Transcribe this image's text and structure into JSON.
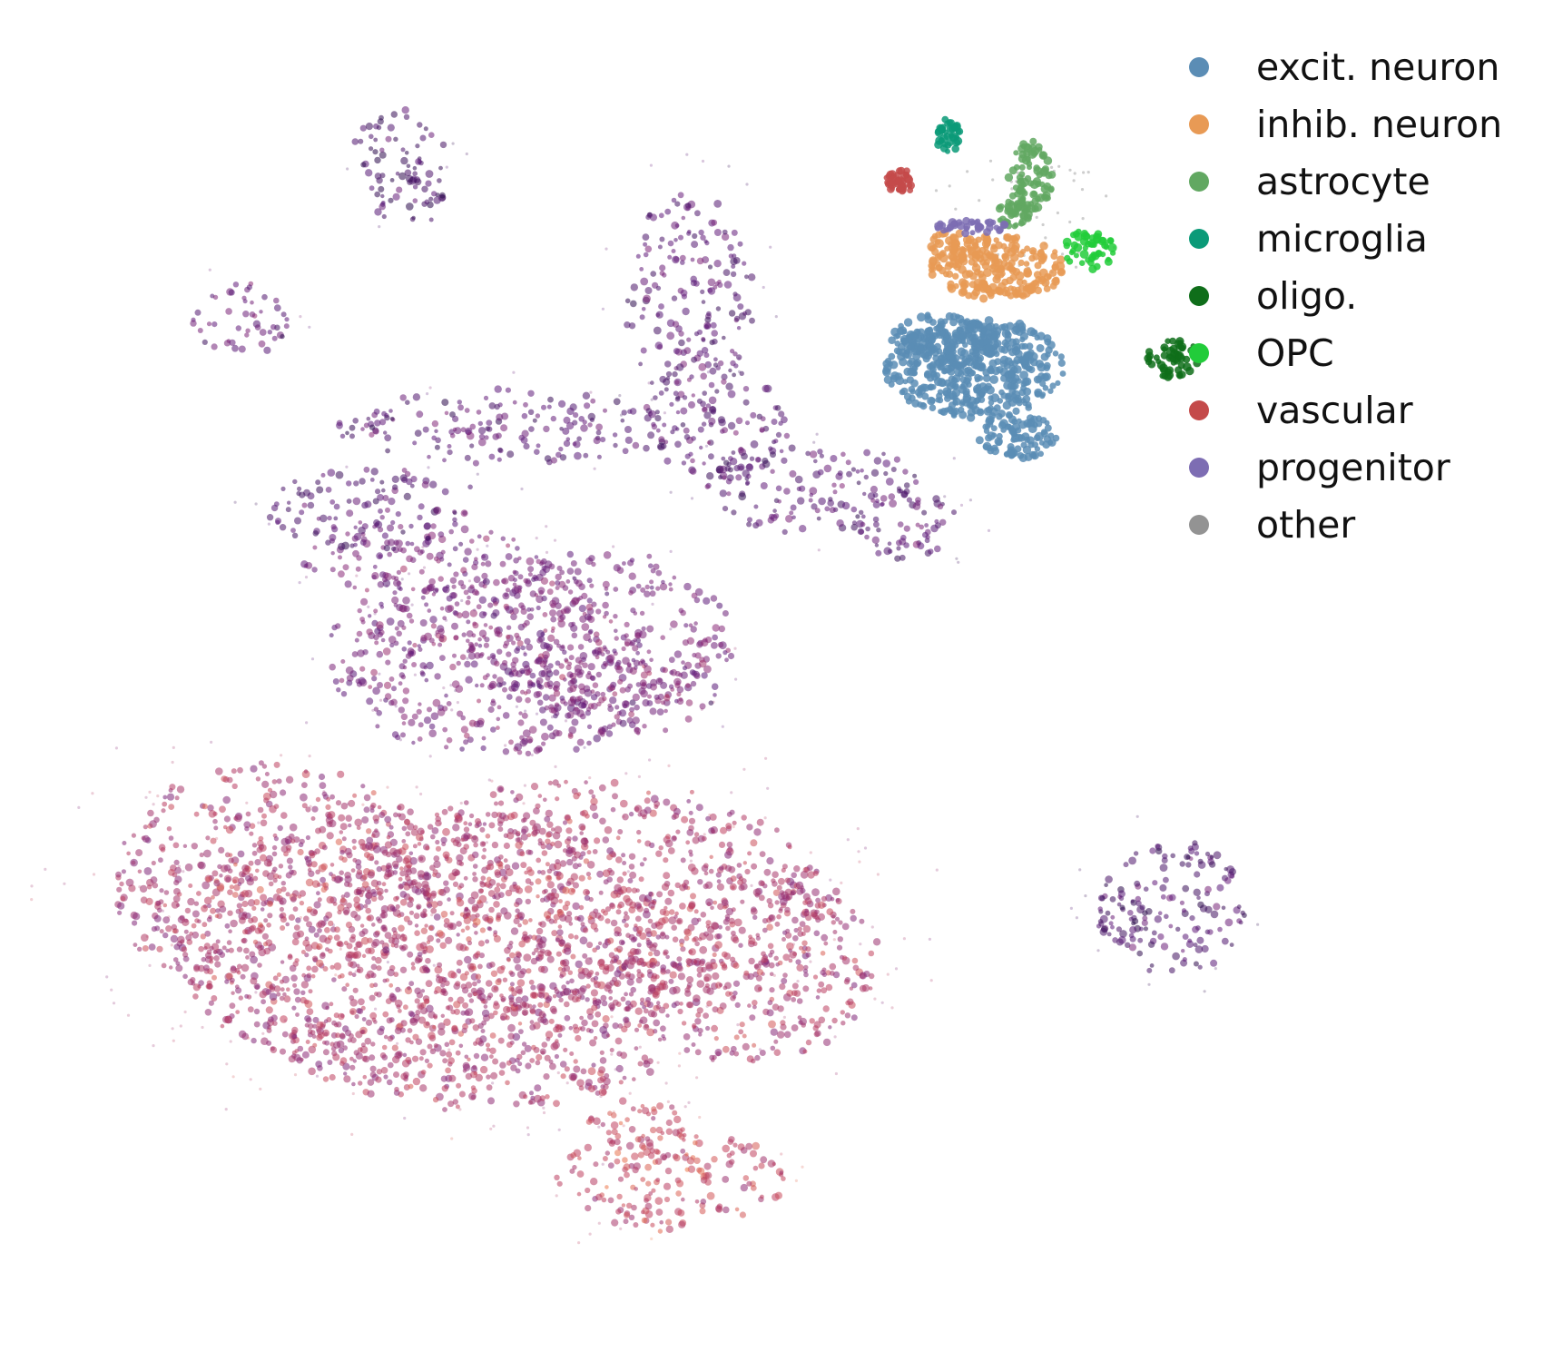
{
  "chart_data": {
    "type": "scatter",
    "title": "",
    "xlabel": "",
    "ylabel": "",
    "axes_visible": false,
    "grid": false,
    "legend_placement": "top-right",
    "main_embedding": {
      "coloring": "continuous gradient from dark purple to orange",
      "colormap": [
        "#2a0a4a",
        "#5c1a7a",
        "#8a2a78",
        "#c0405e",
        "#ee7a4c"
      ],
      "clusters": [
        {
          "id": "lower-large",
          "tone": 0.62
        },
        {
          "id": "middle-ring",
          "tone": 0.38
        },
        {
          "id": "upper-arc",
          "tone": 0.22
        },
        {
          "id": "right-isolated",
          "tone": 0.16
        },
        {
          "id": "top-small",
          "tone": 0.12
        },
        {
          "id": "left-small",
          "tone": 0.3
        },
        {
          "id": "bottom-tail",
          "tone": 0.72
        }
      ]
    },
    "inset_embedding": {
      "coloring": "categorical by cell type",
      "legend": [
        {
          "label": "excit. neuron",
          "color": "#5b8db5"
        },
        {
          "label": "inhib. neuron",
          "color": "#e89a55"
        },
        {
          "label": "astrocyte",
          "color": "#62a862"
        },
        {
          "label": "microglia",
          "color": "#0b9a78"
        },
        {
          "label": "oligo.",
          "color": "#0f6e1a"
        },
        {
          "label": "OPC",
          "color": "#22cc3a"
        },
        {
          "label": "vascular",
          "color": "#c44a4a"
        },
        {
          "label": "progenitor",
          "color": "#7d6db3"
        },
        {
          "label": "other",
          "color": "#939393"
        }
      ]
    }
  }
}
